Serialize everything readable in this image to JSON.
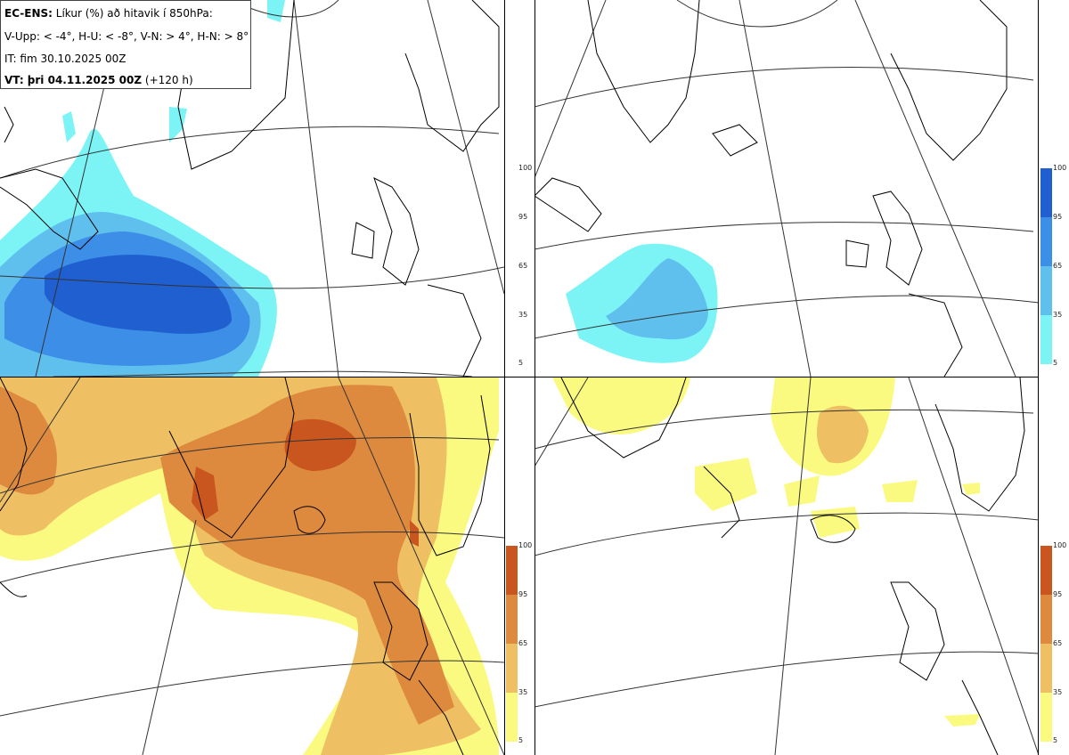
{
  "header": {
    "model": "EC-ENS:",
    "title_rest": " Líkur (%) að hitavik í 850hPa:",
    "thresholds": "V-Upp: < -4°, H-U: < -8°, V-N: > 4°, H-N: > 8°",
    "init_time": "IT: fim 30.10.2025 00Z",
    "valid_label": "VT: þri 04.11.2025 00Z",
    "lead": "(+120 h)"
  },
  "panels": [
    {
      "id": "V-Upp",
      "palette": "blue"
    },
    {
      "id": "H-U",
      "palette": "blue"
    },
    {
      "id": "V-N",
      "palette": "warm"
    },
    {
      "id": "H-N",
      "palette": "warm"
    }
  ],
  "colorbar": {
    "levels": [
      "100",
      "95",
      "65",
      "35",
      "5"
    ],
    "blue_colors": [
      "#1f5fd0",
      "#3d8ee6",
      "#5fc0ee",
      "#7cf4f6"
    ],
    "warm_colors": [
      "#c8561e",
      "#de8a3e",
      "#eec063",
      "#fafa80"
    ]
  }
}
